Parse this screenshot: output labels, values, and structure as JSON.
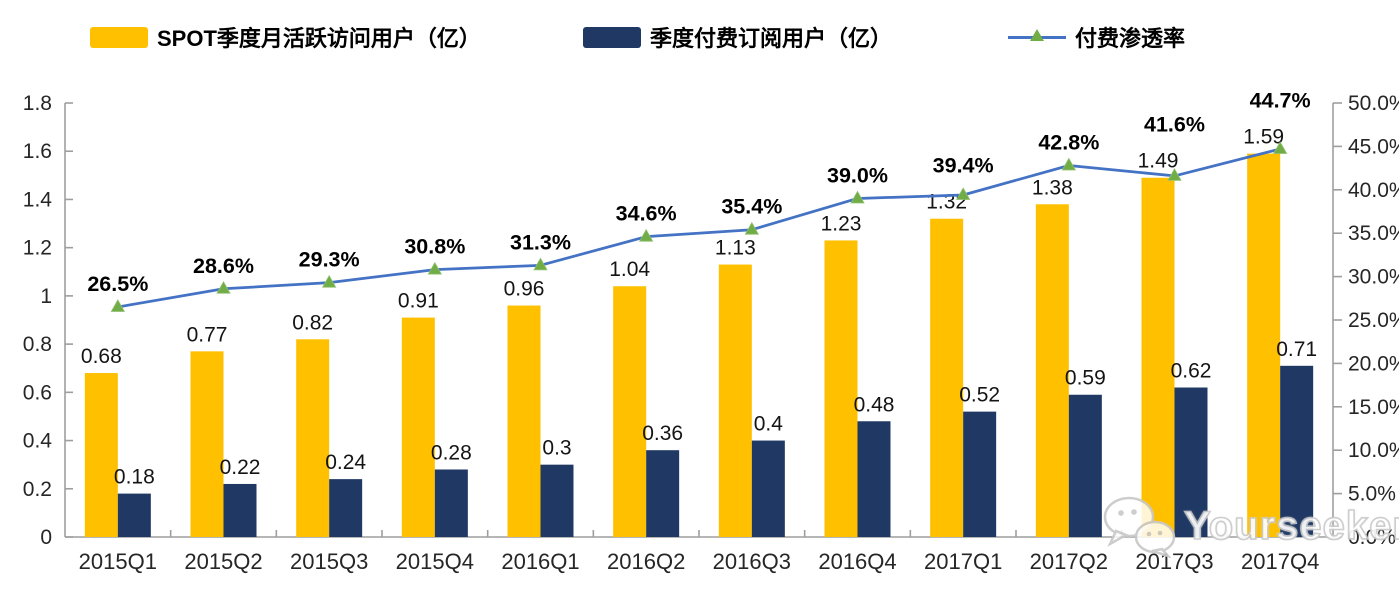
{
  "legend": {
    "items": [
      {
        "label": "SPOT季度月活跃访问用户（亿）",
        "type": "bar",
        "color": "#FFC000"
      },
      {
        "label": "季度付费订阅用户（亿）",
        "type": "bar",
        "color": "#1F3864"
      },
      {
        "label": "付费渗透率",
        "type": "line",
        "color": "#4472C4",
        "marker_color": "#70AD47"
      }
    ]
  },
  "chart_data": {
    "type": "combo-bar-line",
    "title": "",
    "categories": [
      "2015Q1",
      "2015Q2",
      "2015Q3",
      "2015Q4",
      "2016Q1",
      "2016Q2",
      "2016Q3",
      "2016Q4",
      "2017Q1",
      "2017Q2",
      "2017Q3",
      "2017Q4"
    ],
    "series": [
      {
        "name": "SPOT季度月活跃访问用户（亿）",
        "type": "bar",
        "axis": "left",
        "color": "#FFC000",
        "values": [
          0.68,
          0.77,
          0.82,
          0.91,
          0.96,
          1.04,
          1.13,
          1.23,
          1.32,
          1.38,
          1.49,
          1.59
        ],
        "labels": [
          "0.68",
          "0.77",
          "0.82",
          "0.91",
          "0.96",
          "1.04",
          "1.13",
          "1.23",
          "1.32",
          "1.38",
          "1.49",
          "1.59"
        ]
      },
      {
        "name": "季度付费订阅用户（亿）",
        "type": "bar",
        "axis": "left",
        "color": "#1F3864",
        "values": [
          0.18,
          0.22,
          0.24,
          0.28,
          0.3,
          0.36,
          0.4,
          0.48,
          0.52,
          0.59,
          0.62,
          0.71
        ],
        "labels": [
          "0.18",
          "0.22",
          "0.24",
          "0.28",
          "0.3",
          "0.36",
          "0.4",
          "0.48",
          "0.52",
          "0.59",
          "0.62",
          "0.71"
        ]
      },
      {
        "name": "付费渗透率",
        "type": "line",
        "axis": "right",
        "color": "#4472C4",
        "marker": "triangle",
        "marker_color": "#70AD47",
        "values": [
          26.5,
          28.6,
          29.3,
          30.8,
          31.3,
          34.6,
          35.4,
          39.0,
          39.4,
          42.8,
          41.6,
          44.7
        ],
        "labels": [
          "26.5%",
          "28.6%",
          "29.3%",
          "30.8%",
          "31.3%",
          "34.6%",
          "35.4%",
          "39.0%",
          "39.4%",
          "42.8%",
          "41.6%",
          "44.7%"
        ]
      }
    ],
    "left_axis": {
      "min": 0,
      "max": 1.8,
      "step": 0.2,
      "tick_labels": [
        "0",
        "0.2",
        "0.4",
        "0.6",
        "0.8",
        "1",
        "1.2",
        "1.4",
        "1.6",
        "1.8"
      ]
    },
    "right_axis": {
      "min": 0,
      "max": 50,
      "step": 5,
      "tick_labels": [
        "0.0%",
        "5.0%",
        "10.0%",
        "15.0%",
        "20.0%",
        "25.0%",
        "30.0%",
        "35.0%",
        "40.0%",
        "45.0%",
        "50.0%"
      ]
    },
    "grid": false,
    "legend_position": "top",
    "axis_line_color": "#9e9e9e"
  },
  "watermark": {
    "text": "Yourseeker"
  }
}
